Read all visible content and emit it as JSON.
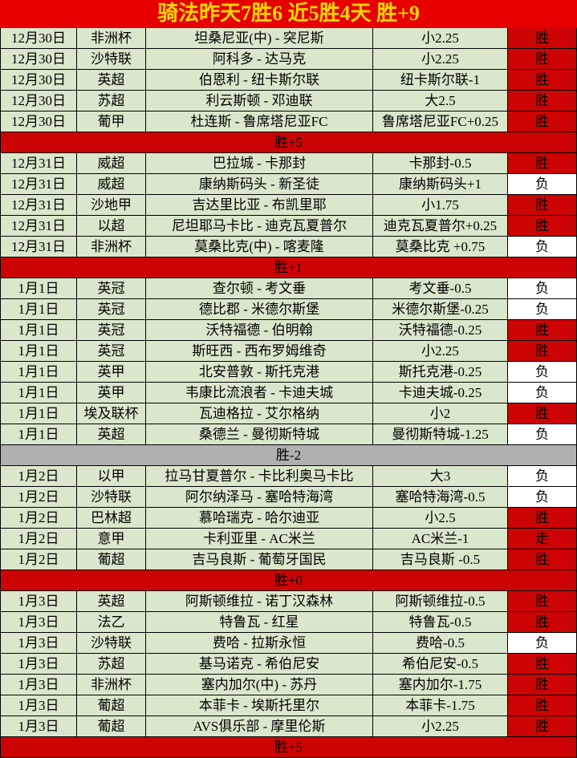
{
  "header": {
    "title": "骑法昨天7胜6  近5胜4天  胜+9"
  },
  "colors": {
    "banner_bg": "#e60000",
    "banner_text": "#ffd700",
    "cell_green": "#d9e8cc",
    "result_win_bg": "#cc0404",
    "result_loss_bg": "#ffffff",
    "summary_red_bg": "#cc0404",
    "summary_gray_bg": "#b0b0b0",
    "border": "#000000"
  },
  "columns": [
    "date",
    "league",
    "match",
    "bet",
    "result"
  ],
  "sections": [
    {
      "summary": "胜+5",
      "summary_style": "red",
      "rows": [
        {
          "date": "12月30日",
          "league": "非洲杯",
          "match": "坦桑尼亚(中) - 突尼斯",
          "bet": "小2.25",
          "result": "胜",
          "outcome": "win"
        },
        {
          "date": "12月30日",
          "league": "沙特联",
          "match": "阿科多 - 达马克",
          "bet": "小2.25",
          "result": "胜",
          "outcome": "win"
        },
        {
          "date": "12月30日",
          "league": "英超",
          "match": "伯恩利 - 纽卡斯尔联",
          "bet": "纽卡斯尔联-1",
          "result": "胜",
          "outcome": "win"
        },
        {
          "date": "12月30日",
          "league": "苏超",
          "match": "利云斯顿 - 邓迪联",
          "bet": "大2.5",
          "result": "胜",
          "outcome": "win"
        },
        {
          "date": "12月30日",
          "league": "葡甲",
          "match": "杜连斯 - 鲁席塔尼亚FC",
          "bet": "鲁席塔尼亚FC+0.25",
          "result": "胜",
          "outcome": "win"
        }
      ]
    },
    {
      "summary": "胜+1",
      "summary_style": "red",
      "rows": [
        {
          "date": "12月31日",
          "league": "威超",
          "match": "巴拉城 - 卡那封",
          "bet": "卡那封-0.5",
          "result": "胜",
          "outcome": "win"
        },
        {
          "date": "12月31日",
          "league": "威超",
          "match": "康纳斯码头 - 新圣徒",
          "bet": "康纳斯码头+1",
          "result": "负",
          "outcome": "loss"
        },
        {
          "date": "12月31日",
          "league": "沙地甲",
          "match": "吉达里比亚 - 布凯里耶",
          "bet": "小1.75",
          "result": "胜",
          "outcome": "win"
        },
        {
          "date": "12月31日",
          "league": "以超",
          "match": "尼坦耶马卡比 - 迪克瓦夏普尔",
          "bet": "迪克瓦夏普尔+0.25",
          "result": "胜",
          "outcome": "win"
        },
        {
          "date": "12月31日",
          "league": "非洲杯",
          "match": "莫桑比克(中) - 喀麦隆",
          "bet": "莫桑比克 +0.75",
          "result": "负",
          "outcome": "loss"
        }
      ]
    },
    {
      "summary": "胜-2",
      "summary_style": "gray",
      "rows": [
        {
          "date": "1月1日",
          "league": "英冠",
          "match": "查尔顿 - 考文垂",
          "bet": "考文垂-0.5",
          "result": "负",
          "outcome": "loss"
        },
        {
          "date": "1月1日",
          "league": "英冠",
          "match": "德比郡 - 米德尔斯堡",
          "bet": "米德尔斯堡-0.25",
          "result": "负",
          "outcome": "loss"
        },
        {
          "date": "1月1日",
          "league": "英冠",
          "match": "沃特福德 - 伯明翰",
          "bet": "沃特福德-0.25",
          "result": "胜",
          "outcome": "win"
        },
        {
          "date": "1月1日",
          "league": "英冠",
          "match": "斯旺西 - 西布罗姆维奇",
          "bet": "小2.25",
          "result": "胜",
          "outcome": "win"
        },
        {
          "date": "1月1日",
          "league": "英甲",
          "match": "北安普敦 - 斯托克港",
          "bet": "斯托克港-0.25",
          "result": "负",
          "outcome": "loss"
        },
        {
          "date": "1月1日",
          "league": "英甲",
          "match": "韦康比流浪者 - 卡迪夫城",
          "bet": "卡迪夫城-0.25",
          "result": "负",
          "outcome": "loss"
        },
        {
          "date": "1月1日",
          "league": "埃及联杯",
          "match": "瓦迪格拉 - 艾尔格纳",
          "bet": "小2",
          "result": "胜",
          "outcome": "win"
        },
        {
          "date": "1月1日",
          "league": "英超",
          "match": "桑德兰 - 曼彻斯特城",
          "bet": "曼彻斯特城-1.25",
          "result": "负",
          "outcome": "loss"
        }
      ]
    },
    {
      "summary": "胜+0",
      "summary_style": "red",
      "rows": [
        {
          "date": "1月2日",
          "league": "以甲",
          "match": "拉马甘夏普尔 - 卡比利奥马卡比",
          "bet": "大3",
          "result": "负",
          "outcome": "loss"
        },
        {
          "date": "1月2日",
          "league": "沙特联",
          "match": "阿尔纳泽马 - 塞哈特海湾",
          "bet": "塞哈特海湾-0.5",
          "result": "负",
          "outcome": "loss"
        },
        {
          "date": "1月2日",
          "league": "巴林超",
          "match": "慕哈瑞克 - 哈尔迪亚",
          "bet": "小2.5",
          "result": "胜",
          "outcome": "win"
        },
        {
          "date": "1月2日",
          "league": "意甲",
          "match": "卡利亚里 - AC米兰",
          "bet": "AC米兰-1",
          "result": "走",
          "outcome": "push"
        },
        {
          "date": "1月2日",
          "league": "葡超",
          "match": "吉马良斯 - 葡萄牙国民",
          "bet": "吉马良斯 -0.5",
          "result": "胜",
          "outcome": "win"
        }
      ]
    },
    {
      "summary": "胜+5",
      "summary_style": "red",
      "rows": [
        {
          "date": "1月3日",
          "league": "英超",
          "match": "阿斯顿维拉 - 诺丁汉森林",
          "bet": "阿斯顿维拉-0.5",
          "result": "胜",
          "outcome": "win"
        },
        {
          "date": "1月3日",
          "league": "法乙",
          "match": "特鲁瓦 - 红星",
          "bet": "特鲁瓦-0.5",
          "result": "胜",
          "outcome": "win"
        },
        {
          "date": "1月3日",
          "league": "沙特联",
          "match": "费哈 - 拉斯永恒",
          "bet": "费哈-0.5",
          "result": "负",
          "outcome": "loss"
        },
        {
          "date": "1月3日",
          "league": "苏超",
          "match": "基马诺克 - 希伯尼安",
          "bet": "希伯尼安-0.5",
          "result": "胜",
          "outcome": "win"
        },
        {
          "date": "1月3日",
          "league": "非洲杯",
          "match": "塞内加尔(中) - 苏丹",
          "bet": "塞内加尔-1.75",
          "result": "胜",
          "outcome": "win"
        },
        {
          "date": "1月3日",
          "league": "葡超",
          "match": "本菲卡 - 埃斯托里尔",
          "bet": "本菲卡-1.75",
          "result": "胜",
          "outcome": "win"
        },
        {
          "date": "1月3日",
          "league": "葡超",
          "match": "AVS俱乐部 - 摩里伦斯",
          "bet": "小2.25",
          "result": "胜",
          "outcome": "win"
        }
      ]
    }
  ]
}
